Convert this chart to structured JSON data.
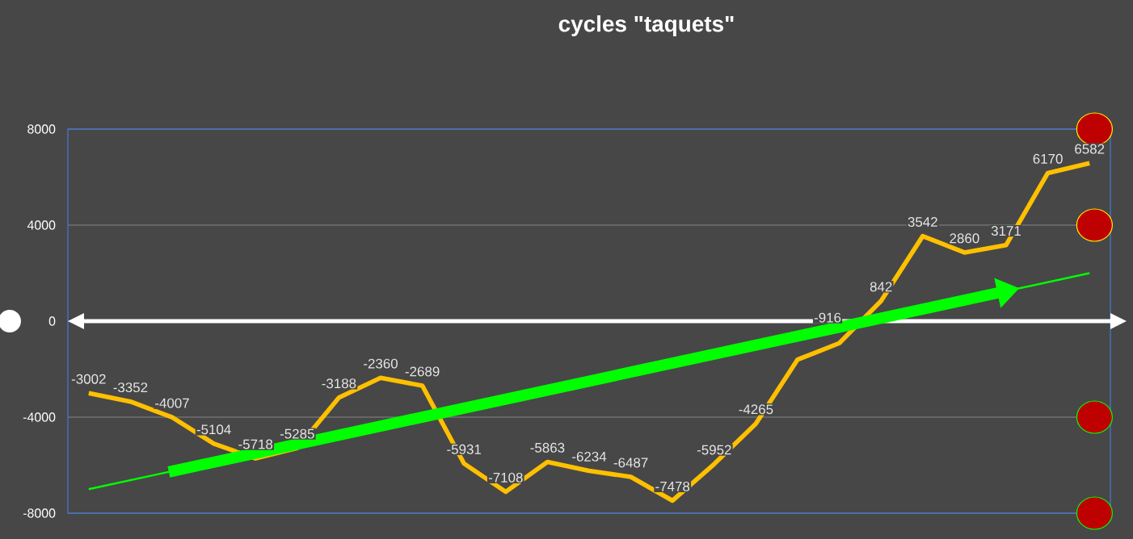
{
  "chart_data": {
    "type": "line",
    "title": "cycles \"taquets\"",
    "categories": [
      null,
      null,
      null,
      null,
      null,
      null,
      null,
      null,
      null,
      null,
      null,
      null,
      null,
      null,
      null,
      null,
      null,
      null,
      null,
      null,
      null,
      null,
      null,
      null,
      null
    ],
    "series": [
      {
        "color": "#ffc000",
        "values": [
          -3002,
          -3352,
          -4007,
          -5104,
          -5718,
          -5285,
          -3188,
          -2360,
          -2689,
          -5931,
          -7108,
          -5863,
          -6234,
          -6487,
          -7478,
          -5952,
          -4265,
          -1600,
          -916,
          842,
          3542,
          2860,
          3171,
          6170,
          6582
        ],
        "value_labels": [
          "-3002",
          "-3352",
          "-4007",
          "-5104",
          "-5718",
          "-5285",
          "-3188",
          "-2360",
          "-2689",
          "-5931",
          "-7108",
          "-5863",
          "-6234",
          "-6487",
          "-7478",
          "-5952",
          "-4265",
          null,
          "-916",
          "842",
          "3542",
          "2860",
          "3171",
          "6170",
          "6582"
        ]
      },
      {
        "type": "line",
        "color": "#00ff00",
        "values": [
          -7000,
          null,
          null,
          null,
          null,
          null,
          null,
          null,
          null,
          null,
          null,
          null,
          null,
          null,
          null,
          null,
          null,
          null,
          null,
          null,
          null,
          null,
          null,
          null,
          2000
        ]
      }
    ],
    "ylim": [
      -8000,
      8000
    ],
    "yticks": [
      -8000,
      -4000,
      0,
      4000,
      8000
    ],
    "grid": "y",
    "ref_lines": [
      {
        "axis": "y",
        "value": 0,
        "color": "#ffffff"
      }
    ]
  }
}
